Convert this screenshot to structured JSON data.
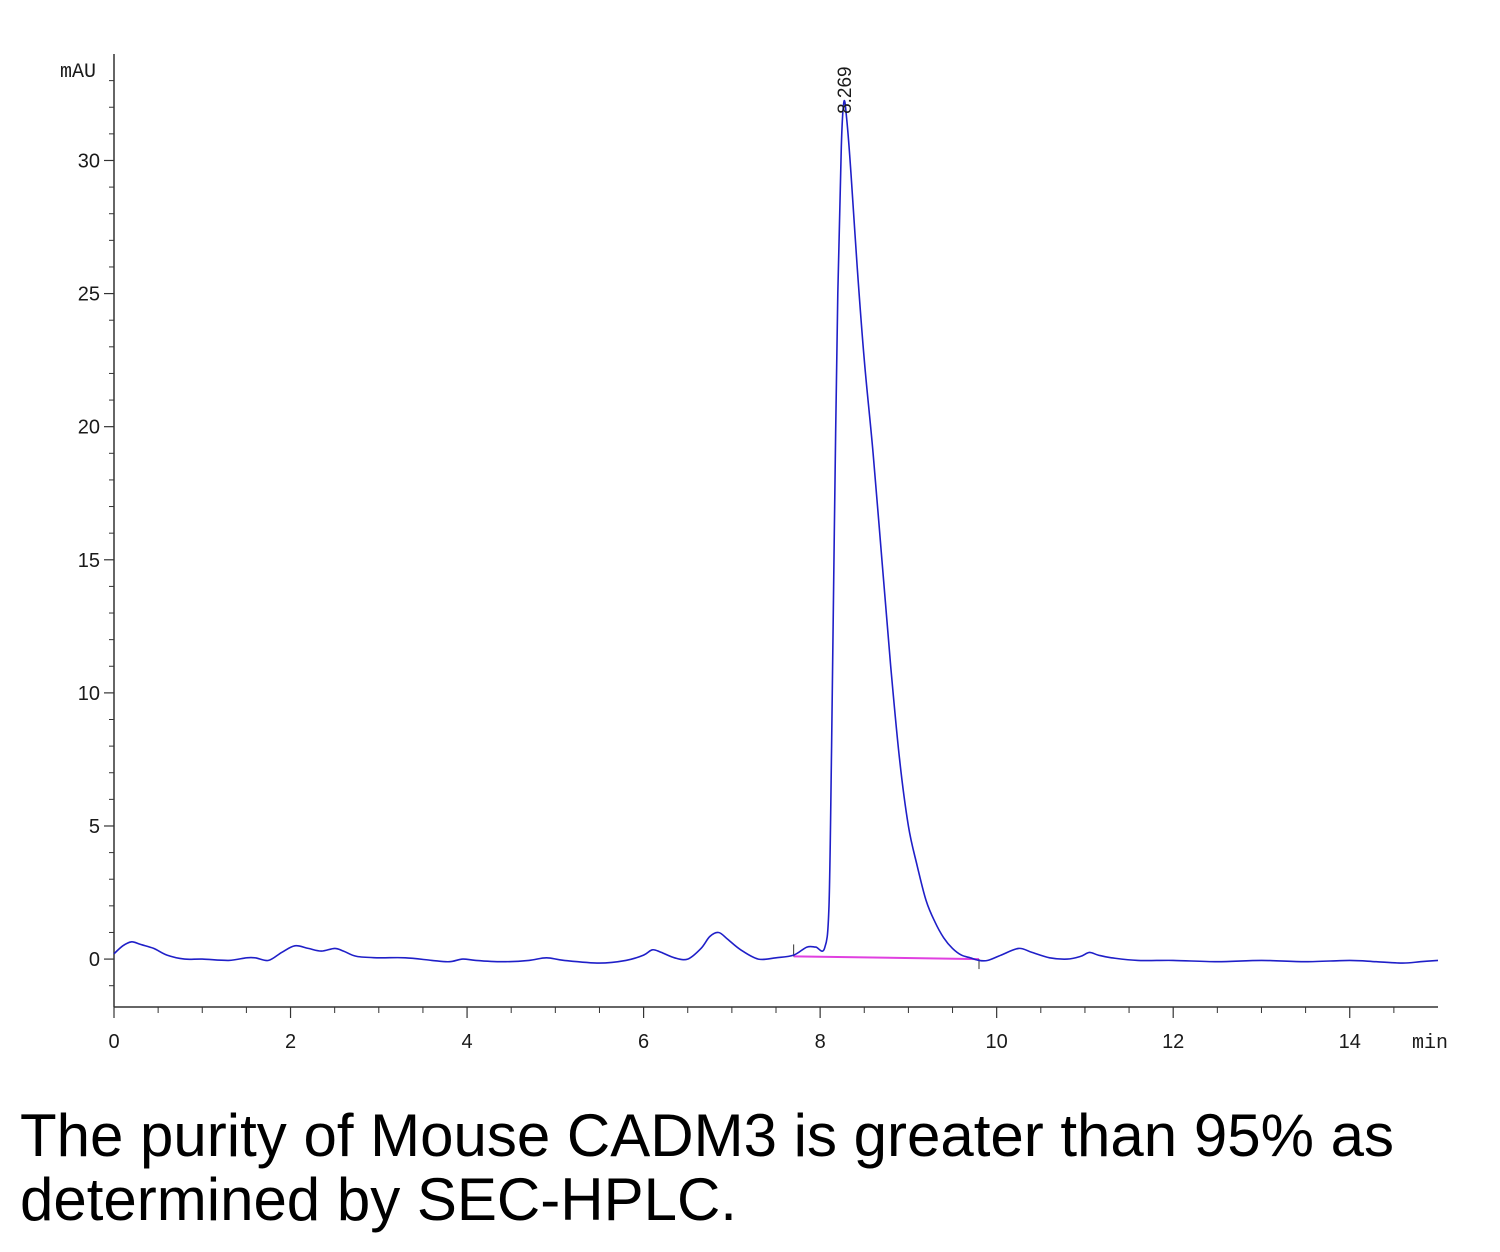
{
  "chart_data": {
    "type": "line",
    "y_unit": "mAU",
    "x_unit": "min",
    "xlim": [
      0,
      15
    ],
    "ylim": [
      -1.8,
      34
    ],
    "x_ticks": [
      0,
      2,
      4,
      6,
      8,
      10,
      12,
      14
    ],
    "y_ticks": [
      0,
      5,
      10,
      15,
      20,
      25,
      30
    ],
    "grid": false,
    "legend": "none",
    "colors": {
      "trace": "#1f1fc8",
      "baseline": "#e040e0",
      "axis": "#333333"
    },
    "peak_annotation": {
      "label": "8.269",
      "x": 8.269,
      "y": 32.2
    },
    "integration_baseline": {
      "x": [
        7.7,
        9.8
      ],
      "y": [
        0.1,
        0.0
      ]
    },
    "series": [
      {
        "x": [
          0,
          0.1,
          0.2,
          0.3,
          0.45,
          0.6,
          0.8,
          1.0,
          1.3,
          1.5,
          1.6,
          1.75,
          1.9,
          2.05,
          2.2,
          2.35,
          2.5,
          2.6,
          2.75,
          3.0,
          3.3,
          3.6,
          3.8,
          3.95,
          4.1,
          4.4,
          4.7,
          4.9,
          5.1,
          5.5,
          5.8,
          6.0,
          6.1,
          6.2,
          6.35,
          6.5,
          6.65,
          6.75,
          6.85,
          6.95,
          7.1,
          7.3,
          7.5,
          7.7,
          7.85,
          7.95,
          8.05,
          8.1,
          8.13,
          8.16,
          8.2,
          8.24,
          8.269,
          8.3,
          8.35,
          8.42,
          8.5,
          8.6,
          8.7,
          8.8,
          8.9,
          9.0,
          9.1,
          9.2,
          9.3,
          9.4,
          9.5,
          9.6,
          9.7,
          9.8,
          9.9,
          10.05,
          10.25,
          10.4,
          10.6,
          10.8,
          10.95,
          11.05,
          11.15,
          11.3,
          11.6,
          12.0,
          12.5,
          13.0,
          13.5,
          14.0,
          14.3,
          14.6,
          14.8,
          15.0
        ],
        "y": [
          0.2,
          0.5,
          0.65,
          0.55,
          0.4,
          0.15,
          0.0,
          0.0,
          -0.05,
          0.05,
          0.05,
          -0.05,
          0.25,
          0.5,
          0.4,
          0.3,
          0.4,
          0.3,
          0.1,
          0.05,
          0.05,
          -0.05,
          -0.1,
          0.0,
          -0.05,
          -0.1,
          -0.05,
          0.05,
          -0.05,
          -0.15,
          -0.05,
          0.15,
          0.35,
          0.25,
          0.05,
          0.0,
          0.4,
          0.85,
          1.0,
          0.75,
          0.35,
          0.0,
          0.05,
          0.15,
          0.45,
          0.45,
          0.4,
          2.0,
          8.0,
          16.0,
          25.0,
          30.5,
          32.2,
          31.6,
          29.5,
          26.0,
          22.5,
          19.0,
          15.0,
          11.0,
          7.5,
          5.0,
          3.5,
          2.2,
          1.4,
          0.8,
          0.4,
          0.15,
          0.05,
          -0.05,
          -0.05,
          0.15,
          0.4,
          0.25,
          0.05,
          0.0,
          0.1,
          0.25,
          0.15,
          0.05,
          -0.05,
          -0.05,
          -0.1,
          -0.05,
          -0.1,
          -0.05,
          -0.1,
          -0.15,
          -0.1,
          -0.05
        ]
      }
    ]
  },
  "caption": "The purity of Mouse CADM3 is greater than 95% as determined by SEC-HPLC."
}
